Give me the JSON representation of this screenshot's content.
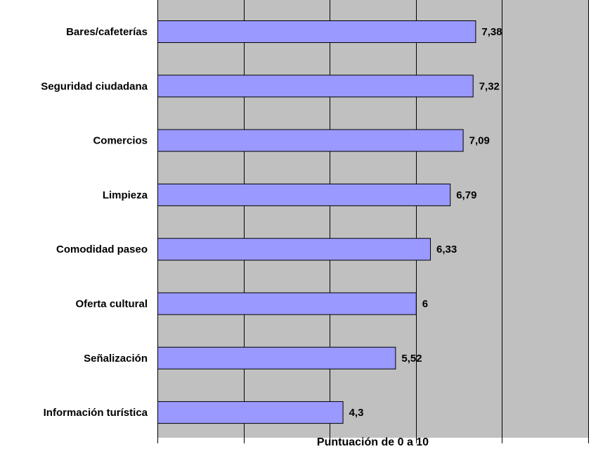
{
  "chart_data": {
    "type": "bar",
    "orientation": "horizontal",
    "title": "",
    "xlabel": "Puntuación de 0 a 10",
    "ylabel": "",
    "xlim": [
      0,
      10
    ],
    "gridlines_x": [
      0,
      2,
      4,
      6,
      8,
      10
    ],
    "grid": true,
    "legend": "none",
    "categories": [
      "Bares/cafeterías",
      "Seguridad ciudadana",
      "Comercios",
      "Limpieza",
      "Comodidad paseo",
      "Oferta cultural",
      "Señalización",
      "Información turística"
    ],
    "values": [
      7.38,
      7.32,
      7.09,
      6.79,
      6.33,
      6,
      5.52,
      4.3
    ],
    "value_labels": [
      "7,38",
      "7,32",
      "7,09",
      "6,79",
      "6,33",
      "6",
      "5,52",
      "4,3"
    ],
    "colors": {
      "plot_background": "#c0c0c0",
      "bar_fill": "#9999ff",
      "bar_stroke": "#000000",
      "gridline": "#000000"
    }
  }
}
